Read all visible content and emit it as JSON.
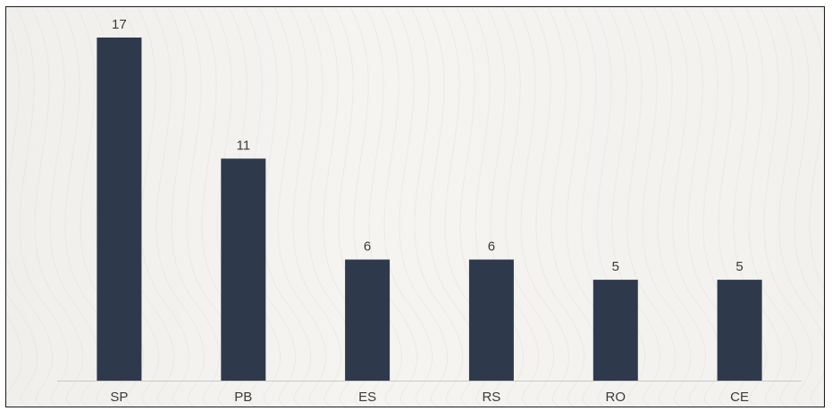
{
  "chart_data": {
    "type": "bar",
    "title": "",
    "xlabel": "",
    "ylabel": "",
    "categories": [
      "SP",
      "PB",
      "ES",
      "RS",
      "RO",
      "CE"
    ],
    "values": [
      17,
      11,
      6,
      6,
      5,
      5
    ],
    "data_labels": [
      "17",
      "11",
      "6",
      "6",
      "5",
      "5"
    ],
    "ylim": [
      0,
      17
    ],
    "grid": false,
    "legend": "none",
    "bar_color": "#2e3a4c",
    "axis_color": "#c8c8c8",
    "label_color": "#3a3a3a"
  }
}
